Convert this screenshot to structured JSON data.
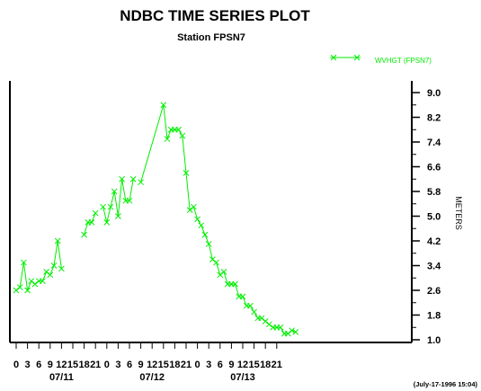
{
  "chart_data": {
    "type": "line",
    "title": "NDBC TIME SERIES PLOT",
    "subtitle": "Station FPSN7",
    "ylabel": "METERS",
    "ylim": [
      1.0,
      9.0
    ],
    "yticks": [
      "9.0",
      "8.2",
      "7.4",
      "6.6",
      "5.8",
      "5.0",
      "4.2",
      "3.4",
      "2.6",
      "1.8",
      "1.0"
    ],
    "x_axis_hours": [
      0,
      102
    ],
    "xticks": [
      "0",
      "3",
      "6",
      "9",
      "12",
      "15",
      "18",
      "21",
      "0",
      "3",
      "6",
      "9",
      "12",
      "15",
      "18",
      "21",
      "0",
      "3",
      "6",
      "9",
      "12",
      "15",
      "18",
      "21"
    ],
    "date_labels": [
      "07/11",
      "07/12",
      "07/13"
    ],
    "timestamp": "(July-17-1996 15:04)",
    "line_color": "#00ee00",
    "series": [
      {
        "name": "WVHGT (FPSN7)",
        "x": [
          0,
          1,
          2,
          3,
          4,
          5,
          6,
          7,
          8,
          9,
          10,
          11,
          12,
          null,
          18,
          19,
          20,
          21,
          22,
          23,
          24,
          25,
          26,
          27,
          28,
          29,
          30,
          31,
          null,
          33,
          39,
          40,
          41,
          42,
          43,
          44,
          45,
          46,
          47,
          48,
          49,
          50,
          51,
          52,
          53,
          54,
          55,
          56,
          57,
          58,
          59,
          60,
          61,
          62,
          63,
          64,
          65,
          66,
          67,
          68,
          69,
          70,
          71,
          72,
          73,
          74,
          75,
          76,
          77,
          78,
          79,
          80,
          81,
          82,
          83,
          84,
          85,
          86,
          87,
          88,
          89,
          90,
          91,
          92,
          93,
          94,
          95,
          96,
          97,
          98,
          99,
          100,
          101,
          102
        ],
        "y": [
          2.6,
          2.7,
          3.5,
          2.6,
          2.9,
          2.8,
          2.9,
          2.9,
          3.2,
          3.1,
          3.4,
          4.2,
          3.3,
          null,
          4.4,
          4.8,
          4.8,
          5.1,
          null,
          5.3,
          4.8,
          5.3,
          5.8,
          5.0,
          6.2,
          5.5,
          5.5,
          6.2,
          null,
          6.1,
          8.6,
          7.5,
          7.8,
          7.8,
          7.8,
          7.6,
          6.4,
          5.2,
          5.3,
          4.9,
          4.7,
          4.4,
          4.1,
          3.6,
          3.5,
          3.1,
          3.2,
          2.8,
          2.8,
          2.8,
          2.4,
          2.4,
          2.1,
          2.1,
          1.9,
          1.7,
          1.7,
          1.6,
          1.5,
          1.4,
          1.4,
          1.4,
          1.2,
          1.2,
          1.3,
          1.25,
          null,
          null,
          null,
          null,
          null,
          null,
          null,
          null,
          null,
          null,
          null,
          null,
          null,
          null,
          null,
          null,
          null,
          null,
          null,
          null,
          null,
          null,
          null,
          null,
          null,
          null,
          null,
          null
        ]
      }
    ],
    "legend_position": "top-right",
    "grid": false
  }
}
